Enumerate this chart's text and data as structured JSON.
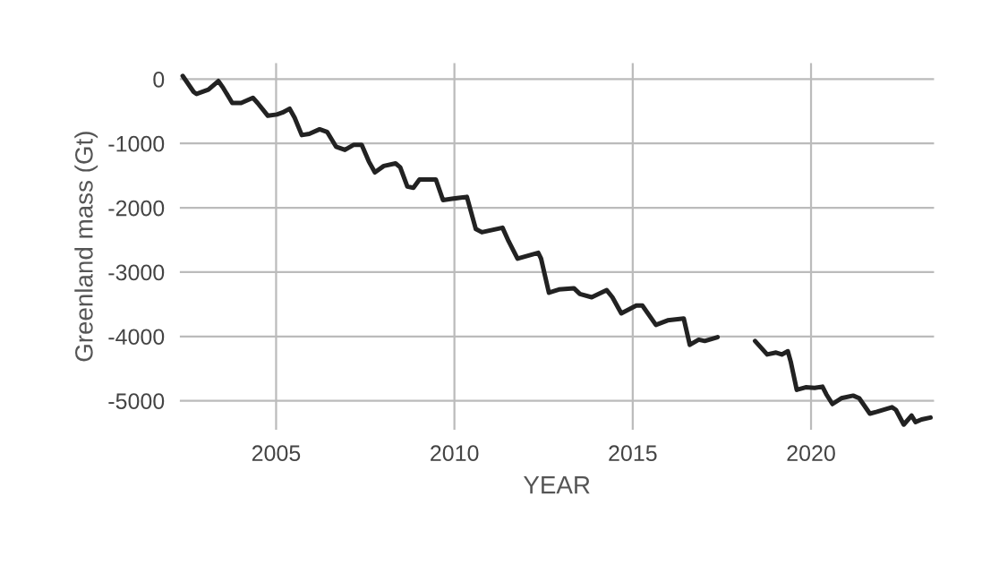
{
  "chart_data": {
    "type": "line",
    "xlabel": "YEAR",
    "ylabel": "Greenland mass (Gt)",
    "xlim": [
      2002.3,
      2023.45
    ],
    "ylim": [
      -5450,
      250
    ],
    "xticks": [
      2005,
      2010,
      2015,
      2020
    ],
    "yticks": [
      -5000,
      -4000,
      -3000,
      -2000,
      -1000,
      0
    ],
    "grid": true,
    "marker": "none",
    "line_style": "solid",
    "series": [
      {
        "color": "#222222",
        "x": [
          2002.38,
          2002.69,
          2002.77,
          2003.1,
          2003.38,
          2003.52,
          2003.77,
          2004.02,
          2004.35,
          2004.48,
          2004.77,
          2005.02,
          2005.18,
          2005.38,
          2005.52,
          2005.72,
          2005.93,
          2006.22,
          2006.43,
          2006.68,
          2006.93,
          2007.18,
          2007.4,
          2007.6,
          2007.77,
          2008.02,
          2008.35,
          2008.48,
          2008.68,
          2008.85,
          2009.02,
          2009.27,
          2009.48,
          2009.68,
          2009.93,
          2010.35,
          2010.6,
          2010.77,
          2011.35,
          2011.52,
          2011.77,
          2012.35,
          2012.43,
          2012.65,
          2012.93,
          2013.35,
          2013.52,
          2013.85,
          2014.27,
          2014.43,
          2014.68,
          2015.1,
          2015.27,
          2015.65,
          2015.98,
          2016.43,
          2016.6,
          2016.85,
          2017.02,
          2017.38,
          2017.9,
          2018.43,
          2018.77,
          2019.02,
          2019.18,
          2019.35,
          2019.43,
          2019.6,
          2019.85,
          2020.1,
          2020.32,
          2020.43,
          2020.6,
          2020.85,
          2021.18,
          2021.35,
          2021.65,
          2021.85,
          2022.27,
          2022.38,
          2022.6,
          2022.82,
          2022.93,
          2023.1,
          2023.35
        ],
        "values": [
          50,
          -200,
          -230,
          -165,
          -30,
          -140,
          -370,
          -370,
          -290,
          -370,
          -570,
          -550,
          -520,
          -460,
          -600,
          -870,
          -850,
          -780,
          -820,
          -1050,
          -1100,
          -1020,
          -1020,
          -1280,
          -1450,
          -1350,
          -1310,
          -1370,
          -1670,
          -1690,
          -1560,
          -1560,
          -1560,
          -1880,
          -1860,
          -1830,
          -2330,
          -2380,
          -2310,
          -2520,
          -2790,
          -2700,
          -2790,
          -3320,
          -3270,
          -3250,
          -3340,
          -3390,
          -3280,
          -3390,
          -3640,
          -3520,
          -3520,
          -3820,
          -3750,
          -3720,
          -4130,
          -4050,
          -4070,
          -4010,
          null,
          -4070,
          -4280,
          -4250,
          -4280,
          -4230,
          -4390,
          -4830,
          -4790,
          -4800,
          -4780,
          -4900,
          -5050,
          -4960,
          -4920,
          -4960,
          -5200,
          -5170,
          -5100,
          -5140,
          -5370,
          -5230,
          -5330,
          -5290,
          -5260
        ]
      }
    ]
  }
}
